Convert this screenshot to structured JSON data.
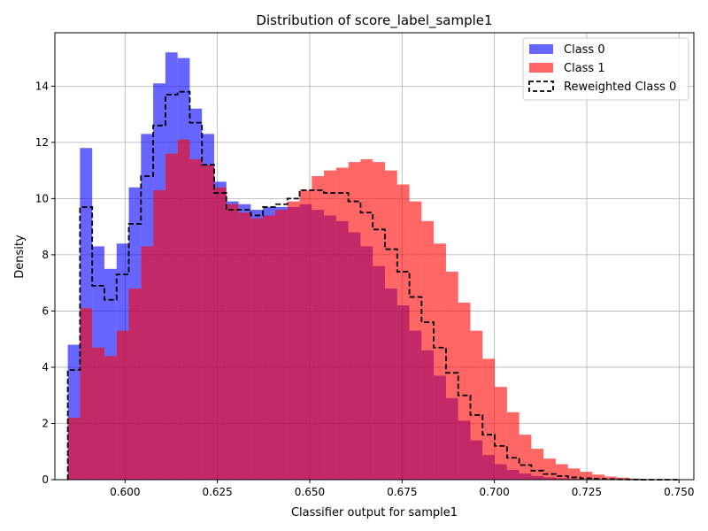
{
  "chart_data": {
    "type": "bar",
    "title": "Distribution of score_label_sample1",
    "xlabel": "Classifier output for sample1",
    "ylabel": "Density",
    "xlim": [
      0.581,
      0.754
    ],
    "ylim": [
      0,
      15.9
    ],
    "bins": {
      "start": 0.5845,
      "width": 0.003303
    },
    "x_ticks": [
      0.6,
      0.625,
      0.65,
      0.675,
      0.7,
      0.725,
      0.75
    ],
    "x_tick_labels": [
      "0.600",
      "0.625",
      "0.650",
      "0.675",
      "0.700",
      "0.725",
      "0.750"
    ],
    "y_ticks": [
      0,
      2,
      4,
      6,
      8,
      10,
      12,
      14
    ],
    "y_tick_labels": [
      "0",
      "2",
      "4",
      "6",
      "8",
      "10",
      "12",
      "14"
    ],
    "grid": true,
    "legend_position": "top-right",
    "series": [
      {
        "name": "Class 0",
        "kind": "filled",
        "color": "#0000ff",
        "values": [
          4.8,
          11.8,
          8.3,
          7.5,
          8.4,
          10.4,
          12.3,
          14.1,
          15.2,
          15.0,
          13.2,
          12.3,
          10.6,
          9.9,
          9.8,
          9.6,
          9.7,
          9.7,
          9.7,
          9.8,
          9.6,
          9.4,
          9.2,
          8.8,
          8.3,
          7.6,
          6.8,
          6.2,
          5.3,
          4.6,
          3.7,
          2.9,
          2.1,
          1.4,
          0.88,
          0.55,
          0.35,
          0.22,
          0.13,
          0.08,
          0.05,
          0.03,
          0.02,
          0.01,
          0.005,
          0.0,
          0.0,
          0.0,
          0.0,
          0.0
        ]
      },
      {
        "name": "Class 1",
        "kind": "filled",
        "color": "#ff0000",
        "values": [
          2.2,
          6.1,
          4.7,
          4.4,
          5.3,
          6.8,
          8.3,
          10.3,
          11.6,
          12.1,
          11.4,
          11.2,
          10.4,
          9.8,
          9.5,
          9.3,
          9.4,
          9.6,
          9.9,
          10.3,
          10.8,
          11.0,
          11.1,
          11.3,
          11.4,
          11.3,
          11.0,
          10.5,
          9.9,
          9.2,
          8.4,
          7.4,
          6.3,
          5.3,
          4.3,
          3.3,
          2.4,
          1.6,
          1.1,
          0.75,
          0.55,
          0.4,
          0.28,
          0.18,
          0.11,
          0.07,
          0.04,
          0.02,
          0.01,
          0.005
        ]
      },
      {
        "name": "Reweighted Class 0",
        "kind": "step",
        "color": "#000000",
        "values": [
          3.9,
          9.7,
          6.9,
          6.4,
          7.3,
          9.1,
          10.8,
          12.6,
          13.7,
          13.8,
          12.7,
          11.2,
          10.2,
          9.6,
          9.6,
          9.4,
          9.7,
          9.8,
          10.0,
          10.3,
          10.3,
          10.2,
          10.2,
          9.9,
          9.5,
          8.9,
          8.2,
          7.4,
          6.5,
          5.6,
          4.7,
          3.8,
          3.0,
          2.3,
          1.6,
          1.2,
          0.78,
          0.52,
          0.32,
          0.2,
          0.13,
          0.08,
          0.05,
          0.03,
          0.02,
          0.01,
          0.005,
          0.0,
          0.0,
          0.0
        ]
      }
    ]
  }
}
